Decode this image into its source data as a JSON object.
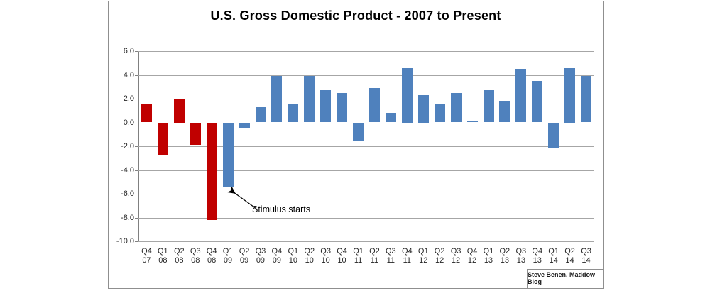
{
  "chart": {
    "title": "U.S. Gross Domestic Product - 2007 to Present",
    "annotation": "Stimulus starts",
    "attribution": "Steve Benen, Maddow Blog"
  },
  "colors": {
    "recession_bar": "#C00000",
    "recovery_bar": "#4F81BD",
    "gridline": "#A6A6A6",
    "axis": "#808080",
    "frame_border": "#8F8F8F",
    "label_text": "#262626"
  },
  "chart_data": {
    "type": "bar",
    "title": "U.S. Gross Domestic Product - 2007 to Present",
    "xlabel": "",
    "ylabel": "",
    "ylim": [
      -10.0,
      6.0
    ],
    "ytick_labels": [
      "6.0",
      "4.0",
      "2.0",
      "0.0",
      "-2.0",
      "-4.0",
      "-6.0",
      "-8.0",
      "-10.0"
    ],
    "grid": true,
    "legend": false,
    "categories": [
      "Q4 07",
      "Q1 08",
      "Q2 08",
      "Q3 08",
      "Q4 08",
      "Q1 09",
      "Q2 09",
      "Q3 09",
      "Q4 09",
      "Q1 10",
      "Q2 10",
      "Q3 10",
      "Q4 10",
      "Q1 11",
      "Q2 11",
      "Q3 11",
      "Q4 11",
      "Q1 12",
      "Q2 12",
      "Q3 12",
      "Q4 12",
      "Q1 13",
      "Q2 13",
      "Q3 13",
      "Q4 13",
      "Q1 14",
      "Q2 14",
      "Q3 14"
    ],
    "values": [
      1.5,
      -2.7,
      2.0,
      -1.9,
      -8.2,
      -5.4,
      -0.5,
      1.3,
      3.9,
      1.6,
      3.9,
      2.7,
      2.5,
      -1.5,
      2.9,
      0.8,
      4.6,
      2.3,
      1.6,
      2.5,
      0.1,
      2.7,
      1.8,
      4.5,
      3.5,
      -2.1,
      4.6,
      3.9
    ],
    "bar_colors": [
      "#C00000",
      "#C00000",
      "#C00000",
      "#C00000",
      "#C00000",
      "#4F81BD",
      "#4F81BD",
      "#4F81BD",
      "#4F81BD",
      "#4F81BD",
      "#4F81BD",
      "#4F81BD",
      "#4F81BD",
      "#4F81BD",
      "#4F81BD",
      "#4F81BD",
      "#4F81BD",
      "#4F81BD",
      "#4F81BD",
      "#4F81BD",
      "#4F81BD",
      "#4F81BD",
      "#4F81BD",
      "#4F81BD",
      "#4F81BD",
      "#4F81BD",
      "#4F81BD",
      "#4F81BD"
    ],
    "annotation": {
      "text": "Stimulus starts",
      "points_to": "Q1 09"
    }
  }
}
